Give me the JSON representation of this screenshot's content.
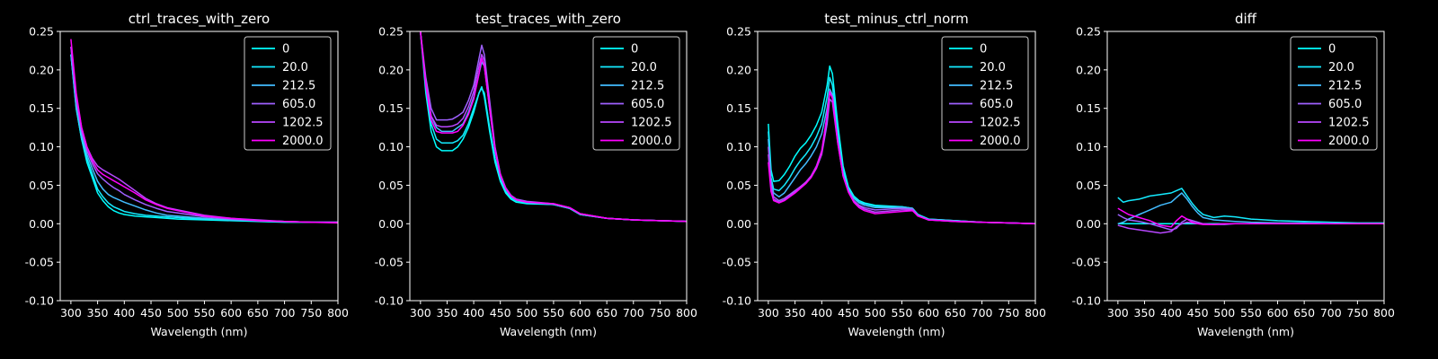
{
  "figure": {
    "background": "#000000",
    "foreground": "#ffffff"
  },
  "legend_labels": [
    "0",
    "20.0",
    "212.5",
    "605.0",
    "1202.5",
    "2000.0"
  ],
  "series_colors": [
    "#00ffff",
    "#14ebff",
    "#43bcff",
    "#9f60ff",
    "#b847ff",
    "#ff00ff"
  ],
  "chart_data": [
    {
      "type": "line",
      "title": "ctrl_traces_with_zero",
      "xlabel": "Wavelength (nm)",
      "ylabel": "",
      "xlim": [
        280,
        800
      ],
      "ylim": [
        -0.1,
        0.25
      ],
      "xticks": [
        300,
        350,
        400,
        450,
        500,
        550,
        600,
        650,
        700,
        750,
        800
      ],
      "yticks": [
        -0.1,
        -0.05,
        0.0,
        0.05,
        0.1,
        0.15,
        0.2,
        0.25
      ],
      "legend": "top-right",
      "grid": false,
      "x": [
        300,
        310,
        320,
        330,
        340,
        350,
        360,
        370,
        380,
        390,
        400,
        420,
        440,
        460,
        480,
        500,
        550,
        600,
        650,
        700,
        750,
        800
      ],
      "series": [
        {
          "name": "0",
          "values": [
            0.22,
            0.15,
            0.11,
            0.08,
            0.06,
            0.04,
            0.03,
            0.022,
            0.017,
            0.014,
            0.012,
            0.01,
            0.009,
            0.008,
            0.007,
            0.006,
            0.005,
            0.004,
            0.003,
            0.002,
            0.002,
            0.002
          ]
        },
        {
          "name": "20.0",
          "values": [
            0.22,
            0.15,
            0.11,
            0.085,
            0.065,
            0.045,
            0.035,
            0.027,
            0.022,
            0.019,
            0.016,
            0.013,
            0.011,
            0.01,
            0.009,
            0.008,
            0.006,
            0.005,
            0.004,
            0.003,
            0.002,
            0.002
          ]
        },
        {
          "name": "212.5",
          "values": [
            0.22,
            0.155,
            0.115,
            0.09,
            0.072,
            0.055,
            0.045,
            0.038,
            0.034,
            0.031,
            0.028,
            0.023,
            0.018,
            0.014,
            0.011,
            0.01,
            0.007,
            0.005,
            0.004,
            0.003,
            0.002,
            0.002
          ]
        },
        {
          "name": "605.0",
          "values": [
            0.23,
            0.16,
            0.12,
            0.095,
            0.078,
            0.065,
            0.058,
            0.052,
            0.047,
            0.043,
            0.038,
            0.031,
            0.025,
            0.02,
            0.016,
            0.014,
            0.009,
            0.006,
            0.004,
            0.003,
            0.002,
            0.002
          ]
        },
        {
          "name": "1202.5",
          "values": [
            0.23,
            0.165,
            0.125,
            0.1,
            0.085,
            0.075,
            0.07,
            0.066,
            0.062,
            0.058,
            0.053,
            0.043,
            0.033,
            0.026,
            0.021,
            0.018,
            0.011,
            0.007,
            0.005,
            0.003,
            0.002,
            0.002
          ]
        },
        {
          "name": "2000.0",
          "values": [
            0.24,
            0.17,
            0.125,
            0.1,
            0.082,
            0.07,
            0.064,
            0.06,
            0.056,
            0.052,
            0.048,
            0.04,
            0.031,
            0.025,
            0.02,
            0.017,
            0.01,
            0.007,
            0.004,
            0.003,
            0.002,
            0.001
          ]
        }
      ]
    },
    {
      "type": "line",
      "title": "test_traces_with_zero",
      "xlabel": "Wavelength (nm)",
      "ylabel": "",
      "xlim": [
        280,
        800
      ],
      "ylim": [
        -0.1,
        0.25
      ],
      "xticks": [
        300,
        350,
        400,
        450,
        500,
        550,
        600,
        650,
        700,
        750,
        800
      ],
      "yticks": [
        -0.1,
        -0.05,
        0.0,
        0.05,
        0.1,
        0.15,
        0.2,
        0.25
      ],
      "legend": "top-right",
      "grid": false,
      "x": [
        300,
        310,
        320,
        330,
        340,
        350,
        360,
        370,
        380,
        390,
        400,
        410,
        415,
        420,
        430,
        440,
        450,
        460,
        470,
        480,
        500,
        550,
        580,
        600,
        650,
        700,
        750,
        800
      ],
      "series": [
        {
          "name": "0",
          "values": [
            0.25,
            0.17,
            0.12,
            0.1,
            0.095,
            0.095,
            0.095,
            0.1,
            0.11,
            0.125,
            0.145,
            0.17,
            0.178,
            0.165,
            0.12,
            0.08,
            0.055,
            0.04,
            0.032,
            0.028,
            0.026,
            0.025,
            0.02,
            0.012,
            0.007,
            0.005,
            0.004,
            0.003
          ]
        },
        {
          "name": "20.0",
          "values": [
            0.25,
            0.18,
            0.13,
            0.11,
            0.105,
            0.105,
            0.105,
            0.108,
            0.115,
            0.13,
            0.15,
            0.17,
            0.176,
            0.17,
            0.125,
            0.085,
            0.058,
            0.042,
            0.034,
            0.03,
            0.027,
            0.025,
            0.02,
            0.012,
            0.007,
            0.005,
            0.004,
            0.003
          ]
        },
        {
          "name": "212.5",
          "values": [
            0.25,
            0.18,
            0.14,
            0.125,
            0.12,
            0.12,
            0.12,
            0.125,
            0.13,
            0.145,
            0.165,
            0.195,
            0.21,
            0.205,
            0.15,
            0.095,
            0.062,
            0.045,
            0.036,
            0.031,
            0.028,
            0.025,
            0.02,
            0.012,
            0.007,
            0.005,
            0.004,
            0.003
          ]
        },
        {
          "name": "605.0",
          "values": [
            0.25,
            0.19,
            0.15,
            0.135,
            0.135,
            0.135,
            0.136,
            0.14,
            0.145,
            0.16,
            0.18,
            0.215,
            0.232,
            0.22,
            0.16,
            0.1,
            0.065,
            0.047,
            0.037,
            0.032,
            0.029,
            0.026,
            0.021,
            0.013,
            0.007,
            0.005,
            0.004,
            0.003
          ]
        },
        {
          "name": "1202.5",
          "values": [
            0.25,
            0.185,
            0.14,
            0.128,
            0.126,
            0.126,
            0.127,
            0.13,
            0.137,
            0.152,
            0.172,
            0.205,
            0.22,
            0.212,
            0.155,
            0.098,
            0.064,
            0.046,
            0.036,
            0.031,
            0.028,
            0.026,
            0.021,
            0.013,
            0.007,
            0.005,
            0.004,
            0.003
          ]
        },
        {
          "name": "2000.0",
          "values": [
            0.25,
            0.18,
            0.135,
            0.12,
            0.118,
            0.118,
            0.118,
            0.12,
            0.128,
            0.142,
            0.162,
            0.195,
            0.215,
            0.205,
            0.15,
            0.096,
            0.063,
            0.046,
            0.036,
            0.031,
            0.028,
            0.026,
            0.021,
            0.013,
            0.007,
            0.005,
            0.004,
            0.003
          ]
        }
      ]
    },
    {
      "type": "line",
      "title": "test_minus_ctrl_norm",
      "xlabel": "Wavelength (nm)",
      "ylabel": "",
      "xlim": [
        280,
        800
      ],
      "ylim": [
        -0.1,
        0.25
      ],
      "xticks": [
        300,
        350,
        400,
        450,
        500,
        550,
        600,
        650,
        700,
        750,
        800
      ],
      "yticks": [
        -0.1,
        -0.05,
        0.0,
        0.05,
        0.1,
        0.15,
        0.2,
        0.25
      ],
      "legend": "top-right",
      "grid": false,
      "x": [
        300,
        305,
        310,
        320,
        330,
        340,
        350,
        360,
        370,
        380,
        390,
        400,
        410,
        415,
        420,
        430,
        440,
        450,
        460,
        470,
        480,
        500,
        550,
        570,
        580,
        600,
        650,
        700,
        750,
        800
      ],
      "series": [
        {
          "name": "0",
          "values": [
            0.13,
            0.07,
            0.055,
            0.056,
            0.064,
            0.075,
            0.088,
            0.098,
            0.105,
            0.115,
            0.128,
            0.145,
            0.18,
            0.205,
            0.195,
            0.13,
            0.075,
            0.048,
            0.036,
            0.03,
            0.027,
            0.024,
            0.022,
            0.02,
            0.012,
            0.006,
            0.004,
            0.002,
            0.001,
            0.0
          ]
        },
        {
          "name": "20.0",
          "values": [
            0.12,
            0.06,
            0.045,
            0.043,
            0.05,
            0.06,
            0.072,
            0.082,
            0.09,
            0.1,
            0.113,
            0.13,
            0.165,
            0.19,
            0.18,
            0.12,
            0.07,
            0.046,
            0.034,
            0.028,
            0.026,
            0.023,
            0.022,
            0.02,
            0.012,
            0.006,
            0.004,
            0.002,
            0.001,
            0.0
          ]
        },
        {
          "name": "212.5",
          "values": [
            0.11,
            0.055,
            0.04,
            0.035,
            0.04,
            0.05,
            0.06,
            0.07,
            0.078,
            0.088,
            0.1,
            0.117,
            0.15,
            0.175,
            0.168,
            0.11,
            0.065,
            0.044,
            0.033,
            0.027,
            0.024,
            0.021,
            0.021,
            0.02,
            0.011,
            0.005,
            0.004,
            0.002,
            0.001,
            0.0
          ]
        },
        {
          "name": "605.0",
          "values": [
            0.1,
            0.05,
            0.035,
            0.03,
            0.033,
            0.038,
            0.043,
            0.048,
            0.053,
            0.06,
            0.072,
            0.09,
            0.13,
            0.162,
            0.158,
            0.105,
            0.062,
            0.042,
            0.03,
            0.024,
            0.021,
            0.018,
            0.02,
            0.019,
            0.011,
            0.005,
            0.003,
            0.002,
            0.001,
            0.0
          ]
        },
        {
          "name": "1202.5",
          "values": [
            0.09,
            0.045,
            0.032,
            0.028,
            0.031,
            0.036,
            0.042,
            0.048,
            0.054,
            0.062,
            0.075,
            0.095,
            0.14,
            0.17,
            0.165,
            0.108,
            0.063,
            0.042,
            0.03,
            0.023,
            0.019,
            0.015,
            0.018,
            0.018,
            0.01,
            0.005,
            0.003,
            0.002,
            0.001,
            0.0
          ]
        },
        {
          "name": "2000.0",
          "values": [
            0.08,
            0.042,
            0.03,
            0.027,
            0.03,
            0.035,
            0.04,
            0.046,
            0.052,
            0.06,
            0.073,
            0.093,
            0.142,
            0.172,
            0.163,
            0.106,
            0.062,
            0.041,
            0.028,
            0.021,
            0.017,
            0.013,
            0.016,
            0.017,
            0.01,
            0.005,
            0.003,
            0.002,
            0.001,
            0.0
          ]
        }
      ]
    },
    {
      "type": "line",
      "title": "diff",
      "xlabel": "Wavelength (nm)",
      "ylabel": "",
      "xlim": [
        280,
        800
      ],
      "ylim": [
        -0.1,
        0.25
      ],
      "xticks": [
        300,
        350,
        400,
        450,
        500,
        550,
        600,
        650,
        700,
        750,
        800
      ],
      "yticks": [
        -0.1,
        -0.05,
        0.0,
        0.05,
        0.1,
        0.15,
        0.2,
        0.25
      ],
      "legend": "top-right",
      "grid": false,
      "x": [
        300,
        310,
        320,
        340,
        360,
        380,
        400,
        410,
        420,
        430,
        440,
        450,
        460,
        480,
        500,
        520,
        550,
        600,
        650,
        700,
        750,
        800
      ],
      "series": [
        {
          "name": "0",
          "values": [
            0.0,
            0.0,
            0.0,
            0.0,
            0.0,
            0.0,
            0.0,
            0.0,
            0.0,
            0.0,
            0.0,
            0.0,
            0.0,
            0.0,
            0.0,
            0.0,
            0.0,
            0.0,
            0.0,
            0.0,
            0.0,
            0.0
          ]
        },
        {
          "name": "20.0",
          "values": [
            0.034,
            0.028,
            0.03,
            0.032,
            0.036,
            0.038,
            0.04,
            0.043,
            0.046,
            0.036,
            0.026,
            0.018,
            0.012,
            0.008,
            0.01,
            0.009,
            0.006,
            0.004,
            0.003,
            0.002,
            0.001,
            0.001
          ]
        },
        {
          "name": "212.5",
          "values": [
            0.0,
            0.002,
            0.006,
            0.012,
            0.018,
            0.024,
            0.028,
            0.034,
            0.04,
            0.032,
            0.022,
            0.014,
            0.008,
            0.005,
            0.004,
            0.003,
            0.002,
            0.001,
            0.001,
            0.0,
            0.0,
            0.0
          ]
        },
        {
          "name": "605.0",
          "values": [
            0.012,
            0.008,
            0.005,
            0.003,
            0.0,
            -0.004,
            -0.008,
            -0.006,
            0.002,
            0.006,
            0.004,
            0.002,
            0.0,
            -0.001,
            -0.001,
            0.0,
            0.0,
            0.0,
            0.0,
            0.0,
            0.0,
            0.0
          ]
        },
        {
          "name": "1202.5",
          "values": [
            -0.002,
            -0.004,
            -0.006,
            -0.008,
            -0.01,
            -0.012,
            -0.01,
            -0.004,
            0.0,
            0.002,
            0.001,
            0.0,
            0.0,
            -0.001,
            0.0,
            0.0,
            0.0,
            0.0,
            0.0,
            0.0,
            0.0,
            0.0
          ]
        },
        {
          "name": "2000.0",
          "values": [
            0.02,
            0.016,
            0.012,
            0.008,
            0.004,
            -0.002,
            -0.004,
            0.004,
            0.01,
            0.006,
            0.002,
            0.0,
            -0.001,
            -0.001,
            0.0,
            0.0,
            0.0,
            0.0,
            0.0,
            0.0,
            0.0,
            0.0
          ]
        }
      ]
    }
  ]
}
